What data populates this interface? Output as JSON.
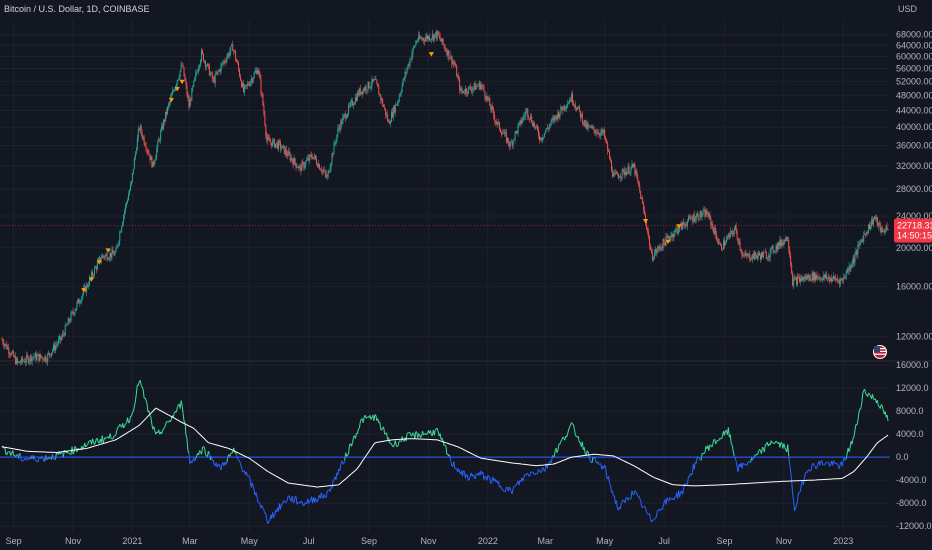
{
  "header": {
    "symbol_title": "Bitcoin / U.S. Dollar, 1D, COINBASE",
    "currency": "USD"
  },
  "price_badge": {
    "price": "22718.31",
    "countdown": "14:50:15",
    "value": 22718.31
  },
  "colors": {
    "background": "#131722",
    "grid": "#1e222d",
    "text": "#b2b5be",
    "candle_up": "#26a69a",
    "candle_down": "#ef5350",
    "osc_positive": "#3ddc97",
    "osc_negative": "#2962ff",
    "signal_line": "#ffffff",
    "zero_line": "#2962ff",
    "marker": "#ff9800",
    "badge": "#f23645"
  },
  "chart_data": [
    {
      "type": "candlestick",
      "title": "Bitcoin / U.S. Dollar, 1D, COINBASE",
      "ylabel": "USD",
      "y_scale": "log",
      "ylim": [
        10500,
        74000
      ],
      "yticks": [
        12000,
        16000,
        20000,
        24000,
        28000,
        32000,
        36000,
        40000,
        44000,
        48000,
        52000,
        56000,
        60000,
        64000,
        68000
      ],
      "ytick_labels": [
        "12000.00",
        "16000.00",
        "20000.00",
        "24000.00",
        "28000.00",
        "32000.00",
        "36000.00",
        "40000.00",
        "44000.00",
        "48000.00",
        "52000.00",
        "56000.00",
        "60000.00",
        "64000.00",
        "68000.00"
      ],
      "x_labels": [
        "Sep",
        "Nov",
        "2021",
        "Mar",
        "May",
        "Jul",
        "Sep",
        "Nov",
        "2022",
        "Mar",
        "May",
        "Jul",
        "Sep",
        "Nov",
        "2023"
      ],
      "x_label_positions": [
        "2020-09-01",
        "2020-11-01",
        "2021-01-01",
        "2021-03-01",
        "2021-05-01",
        "2021-07-01",
        "2021-09-01",
        "2021-11-01",
        "2022-01-01",
        "2022-03-01",
        "2022-05-01",
        "2022-07-01",
        "2022-09-01",
        "2022-11-01",
        "2023-01-01"
      ],
      "xlim": [
        "2020-08-18",
        "2023-02-18"
      ],
      "close_series": [
        [
          "2020-08-20",
          11800
        ],
        [
          "2020-09-05",
          10300
        ],
        [
          "2020-09-20",
          10700
        ],
        [
          "2020-10-05",
          10650
        ],
        [
          "2020-10-20",
          11900
        ],
        [
          "2020-11-01",
          13800
        ],
        [
          "2020-11-15",
          16000
        ],
        [
          "2020-11-30",
          19000
        ],
        [
          "2020-12-15",
          19400
        ],
        [
          "2020-12-31",
          29000
        ],
        [
          "2021-01-08",
          40000
        ],
        [
          "2021-01-22",
          32000
        ],
        [
          "2021-02-08",
          46000
        ],
        [
          "2021-02-21",
          57000
        ],
        [
          "2021-02-28",
          45000
        ],
        [
          "2021-03-13",
          61000
        ],
        [
          "2021-03-25",
          52000
        ],
        [
          "2021-04-14",
          63500
        ],
        [
          "2021-04-25",
          49000
        ],
        [
          "2021-05-10",
          56000
        ],
        [
          "2021-05-19",
          37000
        ],
        [
          "2021-06-01",
          36000
        ],
        [
          "2021-06-22",
          31500
        ],
        [
          "2021-07-05",
          34000
        ],
        [
          "2021-07-20",
          29800
        ],
        [
          "2021-08-01",
          40000
        ],
        [
          "2021-08-22",
          49000
        ],
        [
          "2021-09-07",
          52000
        ],
        [
          "2021-09-21",
          41000
        ],
        [
          "2021-10-01",
          47000
        ],
        [
          "2021-10-20",
          66000
        ],
        [
          "2021-11-10",
          68000
        ],
        [
          "2021-11-28",
          57000
        ],
        [
          "2021-12-04",
          49000
        ],
        [
          "2021-12-25",
          51000
        ],
        [
          "2022-01-10",
          41000
        ],
        [
          "2022-01-24",
          36000
        ],
        [
          "2022-02-10",
          44000
        ],
        [
          "2022-02-24",
          37500
        ],
        [
          "2022-03-28",
          47500
        ],
        [
          "2022-04-12",
          40000
        ],
        [
          "2022-04-30",
          38500
        ],
        [
          "2022-05-10",
          30000
        ],
        [
          "2022-05-31",
          31800
        ],
        [
          "2022-06-14",
          22000
        ],
        [
          "2022-06-18",
          19000
        ],
        [
          "2022-07-08",
          21500
        ],
        [
          "2022-07-30",
          23800
        ],
        [
          "2022-08-14",
          24400
        ],
        [
          "2022-08-28",
          20000
        ],
        [
          "2022-09-12",
          22300
        ],
        [
          "2022-09-20",
          19000
        ],
        [
          "2022-10-15",
          19200
        ],
        [
          "2022-11-05",
          21300
        ],
        [
          "2022-11-10",
          16500
        ],
        [
          "2022-12-01",
          17000
        ],
        [
          "2022-12-31",
          16600
        ],
        [
          "2023-01-12",
          18800
        ],
        [
          "2023-01-20",
          21000
        ],
        [
          "2023-02-02",
          23800
        ],
        [
          "2023-02-10",
          21800
        ],
        [
          "2023-02-16",
          22718
        ]
      ],
      "signal_markers": [
        [
          "2020-11-12",
          15600
        ],
        [
          "2020-11-20",
          16600
        ],
        [
          "2020-11-28",
          18300
        ],
        [
          "2020-12-07",
          19600
        ],
        [
          "2021-02-10",
          46500
        ],
        [
          "2021-02-16",
          49500
        ],
        [
          "2021-02-21",
          51600
        ],
        [
          "2021-11-04",
          60500
        ],
        [
          "2022-06-12",
          23200
        ],
        [
          "2022-07-05",
          20600
        ],
        [
          "2022-07-16",
          22500
        ]
      ],
      "last_price": 22718.31
    },
    {
      "type": "line",
      "title": "",
      "ylim": [
        -13000,
        16500
      ],
      "yticks": [
        -12000,
        -8000,
        -4000,
        0,
        4000,
        8000,
        12000,
        16000
      ],
      "ytick_labels": [
        "-12000.0",
        "-8000.0",
        "-4000.0",
        "0.0",
        "4000.0",
        "8000.0",
        "12000.0",
        "16000.0"
      ],
      "zero_line": 0,
      "series": [
        {
          "name": "",
          "values": [
            [
              "2020-08-20",
              1500
            ],
            [
              "2020-09-10",
              -300
            ],
            [
              "2020-10-01",
              -200
            ],
            [
              "2020-10-20",
              400
            ],
            [
              "2020-11-10",
              1800
            ],
            [
              "2020-11-25",
              2800
            ],
            [
              "2020-12-10",
              3500
            ],
            [
              "2020-12-31",
              7000
            ],
            [
              "2021-01-08",
              13500
            ],
            [
              "2021-01-25",
              3500
            ],
            [
              "2021-02-05",
              5500
            ],
            [
              "2021-02-21",
              9500
            ],
            [
              "2021-03-01",
              -1000
            ],
            [
              "2021-03-15",
              1500
            ],
            [
              "2021-04-01",
              -2000
            ],
            [
              "2021-04-15",
              1000
            ],
            [
              "2021-05-01",
              -4000
            ],
            [
              "2021-05-20",
              -11000
            ],
            [
              "2021-06-10",
              -7000
            ],
            [
              "2021-06-25",
              -8000
            ],
            [
              "2021-07-20",
              -6500
            ],
            [
              "2021-08-05",
              -1000
            ],
            [
              "2021-08-25",
              6500
            ],
            [
              "2021-09-07",
              7000
            ],
            [
              "2021-09-25",
              2000
            ],
            [
              "2021-10-10",
              3500
            ],
            [
              "2021-10-25",
              4000
            ],
            [
              "2021-11-10",
              4500
            ],
            [
              "2021-11-25",
              -1000
            ],
            [
              "2021-12-10",
              -3500
            ],
            [
              "2021-12-25",
              -3000
            ],
            [
              "2022-01-10",
              -4500
            ],
            [
              "2022-01-25",
              -6000
            ],
            [
              "2022-02-10",
              -3000
            ],
            [
              "2022-03-01",
              -2000
            ],
            [
              "2022-03-28",
              5500
            ],
            [
              "2022-04-15",
              0
            ],
            [
              "2022-05-01",
              -2000
            ],
            [
              "2022-05-15",
              -9000
            ],
            [
              "2022-05-31",
              -6000
            ],
            [
              "2022-06-18",
              -11000
            ],
            [
              "2022-07-01",
              -8000
            ],
            [
              "2022-07-20",
              -6000
            ],
            [
              "2022-08-01",
              -1500
            ],
            [
              "2022-08-14",
              1500
            ],
            [
              "2022-08-25",
              3000
            ],
            [
              "2022-09-05",
              4500
            ],
            [
              "2022-09-15",
              -2000
            ],
            [
              "2022-10-01",
              -300
            ],
            [
              "2022-10-20",
              2800
            ],
            [
              "2022-11-05",
              1500
            ],
            [
              "2022-11-12",
              -9000
            ],
            [
              "2022-11-25",
              -2000
            ],
            [
              "2022-12-10",
              -1000
            ],
            [
              "2022-12-31",
              -1500
            ],
            [
              "2023-01-12",
              3500
            ],
            [
              "2023-01-22",
              11500
            ],
            [
              "2023-02-05",
              9800
            ],
            [
              "2023-02-16",
              6500
            ]
          ]
        },
        {
          "name": "",
          "values": [
            [
              "2020-08-20",
              1800
            ],
            [
              "2020-09-15",
              1000
            ],
            [
              "2020-10-15",
              800
            ],
            [
              "2020-11-15",
              1500
            ],
            [
              "2020-12-15",
              3000
            ],
            [
              "2021-01-08",
              5500
            ],
            [
              "2021-01-25",
              8500
            ],
            [
              "2021-02-05",
              7500
            ],
            [
              "2021-02-21",
              6000
            ],
            [
              "2021-03-05",
              5000
            ],
            [
              "2021-03-20",
              2500
            ],
            [
              "2021-04-10",
              1500
            ],
            [
              "2021-05-01",
              -200
            ],
            [
              "2021-05-20",
              -2500
            ],
            [
              "2021-06-10",
              -4500
            ],
            [
              "2021-07-10",
              -5200
            ],
            [
              "2021-08-01",
              -4800
            ],
            [
              "2021-08-20",
              -2000
            ],
            [
              "2021-09-07",
              2500
            ],
            [
              "2021-09-25",
              3000
            ],
            [
              "2021-10-15",
              3200
            ],
            [
              "2021-11-10",
              3000
            ],
            [
              "2021-12-01",
              1800
            ],
            [
              "2021-12-25",
              -200
            ],
            [
              "2022-01-25",
              -1000
            ],
            [
              "2022-02-20",
              -1500
            ],
            [
              "2022-03-10",
              -1200
            ],
            [
              "2022-03-28",
              0
            ],
            [
              "2022-04-20",
              500
            ],
            [
              "2022-05-10",
              200
            ],
            [
              "2022-05-31",
              -1500
            ],
            [
              "2022-06-20",
              -3500
            ],
            [
              "2022-07-10",
              -4800
            ],
            [
              "2022-08-01",
              -5000
            ],
            [
              "2022-09-01",
              -4800
            ],
            [
              "2022-10-01",
              -4500
            ],
            [
              "2022-11-01",
              -4200
            ],
            [
              "2022-12-01",
              -4000
            ],
            [
              "2022-12-31",
              -3700
            ],
            [
              "2023-01-12",
              -2500
            ],
            [
              "2023-01-25",
              0
            ],
            [
              "2023-02-05",
              2500
            ],
            [
              "2023-02-16",
              3800
            ]
          ]
        }
      ]
    }
  ]
}
